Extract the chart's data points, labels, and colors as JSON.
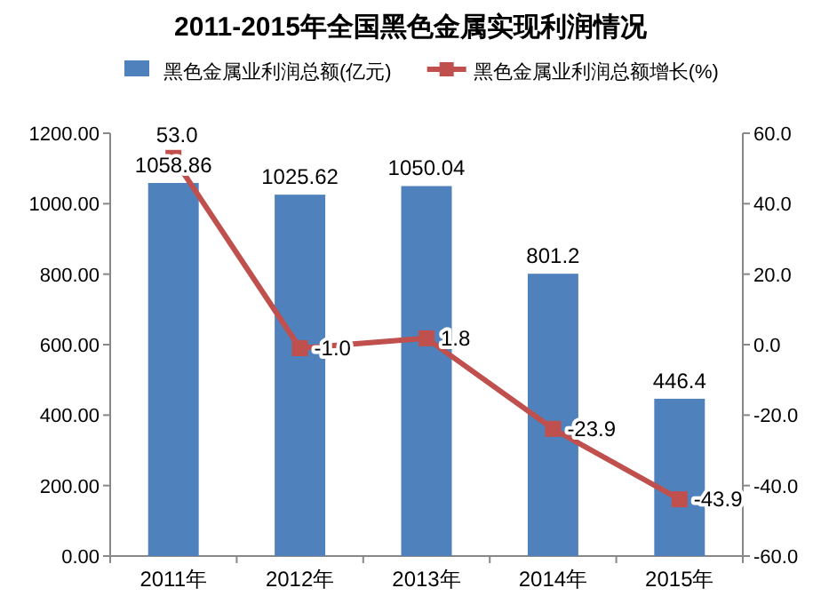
{
  "chart_data": {
    "type": "bar",
    "title": "2011-2015年全国黑色金属实现利润情况",
    "categories": [
      "2011年",
      "2012年",
      "2013年",
      "2014年",
      "2015年"
    ],
    "series": [
      {
        "name": "黑色金属业利润总额(亿元)",
        "color": "#4f81bd",
        "values": [
          1058.86,
          1025.62,
          1050.04,
          801.2,
          446.4
        ],
        "value_labels": [
          "1058.86",
          "1025.62",
          "1050.04",
          "801.2",
          "446.4"
        ]
      },
      {
        "name": "黑色金属业利润总额增长(%)",
        "type": "line",
        "axis": "y2",
        "color": "#c0504d",
        "marker": "square",
        "values": [
          53.0,
          -1.0,
          1.8,
          -23.9,
          -43.9
        ],
        "value_labels": [
          "53.0",
          "-1.0",
          "1.8",
          "-23.9",
          "-43.9"
        ]
      }
    ],
    "ylim": [
      0,
      1200
    ],
    "yticks": [
      {
        "value": 0,
        "label": "0.00"
      },
      {
        "value": 200,
        "label": "200.00"
      },
      {
        "value": 400,
        "label": "400.00"
      },
      {
        "value": 600,
        "label": "600.00"
      },
      {
        "value": 800,
        "label": "800.00"
      },
      {
        "value": 1000,
        "label": "1000.00"
      },
      {
        "value": 1200,
        "label": "1200.00"
      }
    ],
    "y2lim": [
      -60,
      60
    ],
    "y2ticks": [
      {
        "value": -60,
        "label": "-60.0"
      },
      {
        "value": -40,
        "label": "-40.0"
      },
      {
        "value": -20,
        "label": "-20.0"
      },
      {
        "value": 0,
        "label": "0.0"
      },
      {
        "value": 20,
        "label": "20.0"
      },
      {
        "value": 40,
        "label": "40.0"
      },
      {
        "value": 60,
        "label": "60.0"
      }
    ],
    "legend": "top",
    "grid": false
  }
}
